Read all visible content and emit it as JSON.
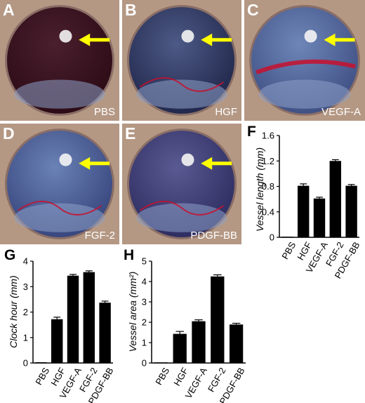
{
  "panels": [
    {
      "letter": "A",
      "label": "PBS"
    },
    {
      "letter": "B",
      "label": "HGF"
    },
    {
      "letter": "C",
      "label": "VEGF-A"
    },
    {
      "letter": "D",
      "label": "FGF-2"
    },
    {
      "letter": "E",
      "label": "PDGF-BB"
    }
  ],
  "colors": {
    "arrow": "#ffff00",
    "vessel": "#c8102e",
    "bar": "#000000"
  },
  "chart_data": [
    {
      "letter": "F",
      "type": "bar",
      "categories": [
        "PBS",
        "HGF",
        "VEGF-A",
        "FGF-2",
        "PDGF-BB"
      ],
      "values": [
        0.01,
        0.81,
        0.61,
        1.2,
        0.81
      ],
      "errors": [
        0,
        0.03,
        0.02,
        0.02,
        0.02
      ],
      "ylabel": "Vessel length (mm)",
      "ylim": [
        0,
        1.6
      ],
      "yticks": [
        "0",
        "0.4",
        "0.8",
        "1.2",
        "1.6"
      ]
    },
    {
      "letter": "G",
      "type": "bar",
      "categories": [
        "PBS",
        "HGF",
        "VEGF-A",
        "FGF-2",
        "PDGF-BB"
      ],
      "values": [
        0.03,
        1.72,
        3.43,
        3.57,
        2.37
      ],
      "errors": [
        0,
        0.08,
        0.05,
        0.05,
        0.06
      ],
      "ylabel": "Clock hour (mm)",
      "ylim": [
        0,
        4
      ],
      "yticks": [
        "0",
        "1",
        "2",
        "3",
        "4"
      ]
    },
    {
      "letter": "H",
      "type": "bar",
      "categories": [
        "PBS",
        "HGF",
        "VEGF-A",
        "FGF-2",
        "PDGF-BB"
      ],
      "values": [
        0.03,
        1.43,
        2.05,
        4.25,
        1.89
      ],
      "errors": [
        0,
        0.12,
        0.07,
        0.08,
        0.06
      ],
      "ylabel": "Vessel area (mm²)",
      "ylim": [
        0,
        5
      ],
      "yticks": [
        "0",
        "1",
        "2",
        "3",
        "4",
        "5"
      ]
    }
  ]
}
